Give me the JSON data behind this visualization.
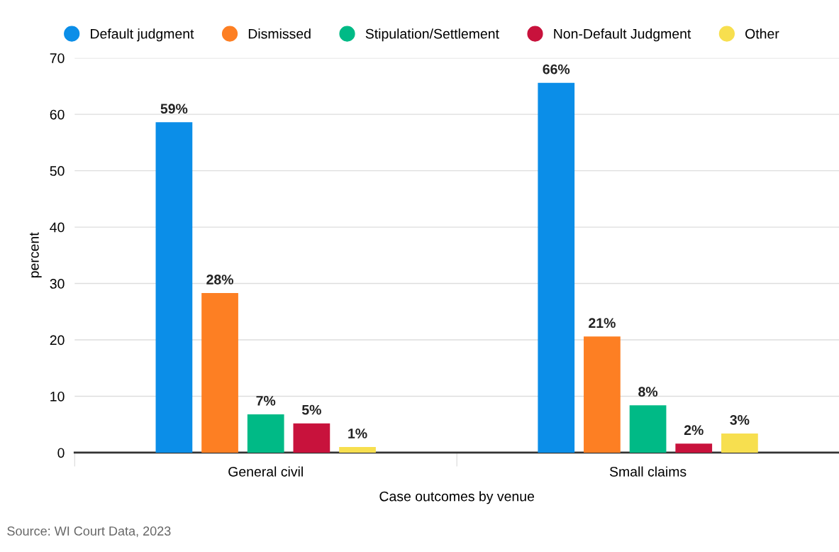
{
  "chart_data": {
    "type": "bar",
    "categories": [
      "General civil",
      "Small claims"
    ],
    "series": [
      {
        "name": "Default judgment",
        "color": "#0b8ee8",
        "values": [
          58.6,
          65.6
        ],
        "value_labels": [
          "59%",
          "66%"
        ]
      },
      {
        "name": "Dismissed",
        "color": "#fd7f23",
        "values": [
          28.3,
          20.6
        ],
        "value_labels": [
          "28%",
          "21%"
        ]
      },
      {
        "name": "Stipulation/Settlement",
        "color": "#00ba86",
        "values": [
          6.8,
          8.4
        ],
        "value_labels": [
          "7%",
          "8%"
        ]
      },
      {
        "name": "Non-Default Judgment",
        "color": "#c8123c",
        "values": [
          5.2,
          1.6
        ],
        "value_labels": [
          "5%",
          "2%"
        ]
      },
      {
        "name": "Other",
        "color": "#f7df4f",
        "values": [
          1.0,
          3.4
        ],
        "value_labels": [
          "1%",
          "3%"
        ]
      }
    ],
    "xlabel": "Case outcomes by venue",
    "ylabel": "percent",
    "ylim": [
      0,
      70
    ],
    "yticks": [
      0,
      10,
      20,
      30,
      40,
      50,
      60,
      70
    ],
    "grid": "y",
    "legend": "top",
    "annotations": [
      "Source: WI Court Data, 2023"
    ]
  }
}
